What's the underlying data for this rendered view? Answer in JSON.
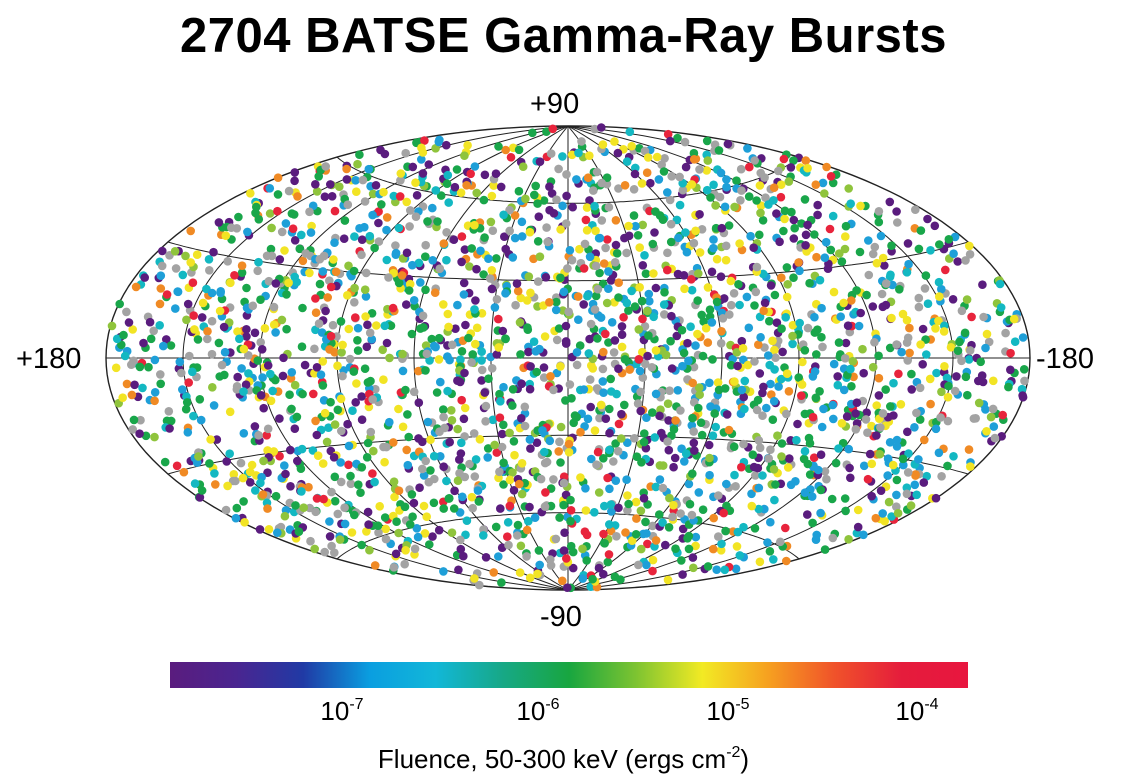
{
  "chart_data": {
    "type": "scatter",
    "title": "2704 BATSE Gamma-Ray Bursts",
    "projection": "Aitoff (all-sky, galactic coordinates)",
    "n_points": 2704,
    "latitude_labels": {
      "top": "+90",
      "bottom": "-90"
    },
    "longitude_labels": {
      "left": "+180",
      "right": "-180"
    },
    "graticule": {
      "latitude_step_deg": 30,
      "longitude_step_deg": 30
    },
    "color_scale": {
      "quantity": "Fluence",
      "label_prefix": "Fluence, 50-300 keV (ergs cm",
      "label_exponent": "-2",
      "label_suffix": ")",
      "scale": "log",
      "colormap": [
        "#5a1c7e",
        "#4a2590",
        "#203aa5",
        "#0a9ee0",
        "#12b7d8",
        "#17a886",
        "#18a640",
        "#7cc331",
        "#f2ea24",
        "#f6a020",
        "#f0522a",
        "#e51c3c",
        "#e8163f"
      ],
      "ticks": [
        {
          "base": "10",
          "exp": "-7"
        },
        {
          "base": "10",
          "exp": "-6"
        },
        {
          "base": "10",
          "exp": "-5"
        },
        {
          "base": "10",
          "exp": "-4"
        }
      ]
    },
    "point_color_classes": [
      "#5a1c7e",
      "#1e9fd8",
      "#19a64a",
      "#f2e424",
      "#f08a24",
      "#e8243c",
      "#a3a3a3",
      "#13b8c2",
      "#8fc43c"
    ]
  }
}
